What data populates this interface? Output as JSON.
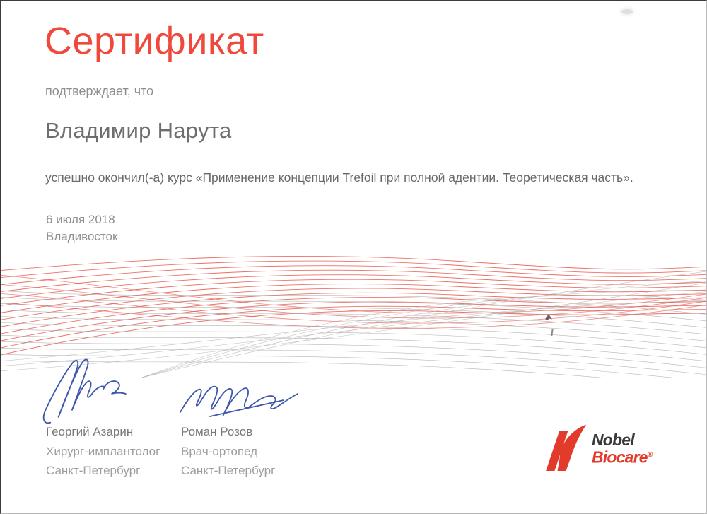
{
  "certificate": {
    "title": "Сертификат",
    "confirmation": "подтверждает, что",
    "recipient": "Владимир Нарута",
    "course_statement": "успешно окончил(-а) курс «Применение концепции Trefoil при полной адентии. Теоретическая часть».",
    "date": "6 июля 2018",
    "city": "Владивосток"
  },
  "signatories": [
    {
      "name": "Георгий Азарин",
      "role": "Хирург-имплантолог",
      "city": "Санкт-Петербург"
    },
    {
      "name": "Роман Розов",
      "role": "Врач-ортопед",
      "city": "Санкт-Петербург"
    }
  ],
  "logo": {
    "word_top": "Nobel",
    "word_bottom": "Biocare",
    "registered_mark": "®"
  },
  "colors": {
    "accent_red": "#f0493b",
    "logo_red": "#e23a2b",
    "logo_dark": "#3a3a3c",
    "signature_blue": "#3f56ad",
    "wave_red": "#e9574c",
    "wave_gray": "#a3a3a3",
    "text_dark": "#6d6d6d",
    "text_gray": "#8e8e8e",
    "text_light": "#9e9e9e"
  }
}
